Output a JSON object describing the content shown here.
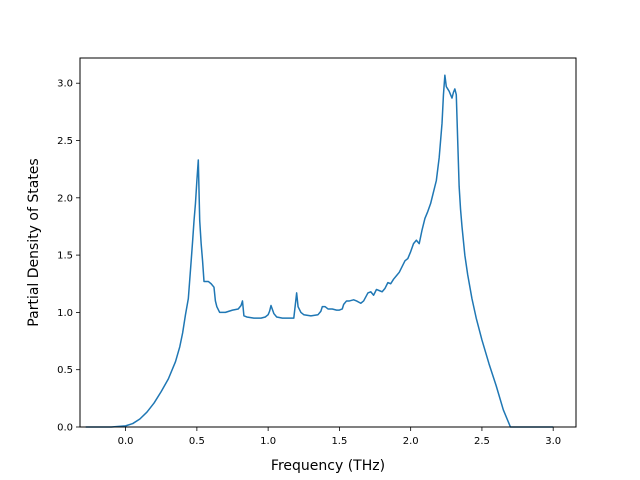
{
  "chart_data": {
    "type": "line",
    "title": "",
    "xlabel": "Frequency (THz)",
    "ylabel": "Partial Density of States",
    "xlim": [
      -0.32,
      3.16
    ],
    "ylim": [
      0,
      3.22
    ],
    "x_ticks": [
      {
        "value": 0.0,
        "label": "0.0"
      },
      {
        "value": 0.5,
        "label": "0.5"
      },
      {
        "value": 1.0,
        "label": "1.0"
      },
      {
        "value": 1.5,
        "label": "1.5"
      },
      {
        "value": 2.0,
        "label": "2.0"
      },
      {
        "value": 2.5,
        "label": "2.5"
      },
      {
        "value": 3.0,
        "label": "3.0"
      }
    ],
    "y_ticks": [
      {
        "value": 0.0,
        "label": "0.0"
      },
      {
        "value": 0.5,
        "label": "0.5"
      },
      {
        "value": 1.0,
        "label": "1.0"
      },
      {
        "value": 1.5,
        "label": "1.5"
      },
      {
        "value": 2.0,
        "label": "2.0"
      },
      {
        "value": 2.5,
        "label": "2.5"
      },
      {
        "value": 3.0,
        "label": "3.0"
      }
    ],
    "grid": false,
    "legend": "none",
    "series": [
      {
        "color": "#1f77b4",
        "x": [
          -0.28,
          -0.1,
          0.0,
          0.05,
          0.1,
          0.15,
          0.2,
          0.25,
          0.3,
          0.35,
          0.38,
          0.4,
          0.42,
          0.44,
          0.46,
          0.47,
          0.48,
          0.49,
          0.5,
          0.51,
          0.52,
          0.53,
          0.54,
          0.55,
          0.58,
          0.6,
          0.62,
          0.63,
          0.64,
          0.66,
          0.7,
          0.75,
          0.79,
          0.81,
          0.82,
          0.83,
          0.85,
          0.9,
          0.95,
          0.98,
          1.0,
          1.01,
          1.02,
          1.04,
          1.06,
          1.1,
          1.15,
          1.18,
          1.19,
          1.2,
          1.21,
          1.23,
          1.25,
          1.3,
          1.35,
          1.37,
          1.38,
          1.4,
          1.42,
          1.45,
          1.48,
          1.5,
          1.52,
          1.53,
          1.55,
          1.57,
          1.6,
          1.62,
          1.65,
          1.67,
          1.7,
          1.72,
          1.74,
          1.76,
          1.78,
          1.8,
          1.82,
          1.84,
          1.86,
          1.88,
          1.9,
          1.92,
          1.94,
          1.96,
          1.98,
          2.0,
          2.02,
          2.04,
          2.06,
          2.08,
          2.1,
          2.12,
          2.14,
          2.16,
          2.18,
          2.2,
          2.22,
          2.23,
          2.24,
          2.25,
          2.26,
          2.27,
          2.28,
          2.29,
          2.3,
          2.31,
          2.32,
          2.33,
          2.34,
          2.35,
          2.36,
          2.38,
          2.4,
          2.43,
          2.46,
          2.5,
          2.55,
          2.6,
          2.65,
          2.7,
          2.72,
          2.73,
          2.735,
          2.8,
          3.0
        ],
        "y": [
          0,
          0,
          0.01,
          0.03,
          0.07,
          0.13,
          0.21,
          0.31,
          0.42,
          0.57,
          0.7,
          0.82,
          0.98,
          1.12,
          1.45,
          1.62,
          1.8,
          1.95,
          2.15,
          2.33,
          1.8,
          1.6,
          1.45,
          1.27,
          1.27,
          1.25,
          1.22,
          1.1,
          1.05,
          1.0,
          1.0,
          1.02,
          1.03,
          1.06,
          1.1,
          0.97,
          0.96,
          0.95,
          0.95,
          0.96,
          0.98,
          1.01,
          1.06,
          0.99,
          0.96,
          0.95,
          0.95,
          0.95,
          1.06,
          1.17,
          1.05,
          1.0,
          0.98,
          0.97,
          0.98,
          1.01,
          1.05,
          1.05,
          1.03,
          1.03,
          1.02,
          1.02,
          1.03,
          1.07,
          1.1,
          1.1,
          1.11,
          1.1,
          1.08,
          1.1,
          1.17,
          1.18,
          1.15,
          1.2,
          1.19,
          1.18,
          1.21,
          1.26,
          1.25,
          1.29,
          1.32,
          1.35,
          1.4,
          1.45,
          1.47,
          1.53,
          1.6,
          1.63,
          1.6,
          1.72,
          1.82,
          1.88,
          1.95,
          2.05,
          2.15,
          2.35,
          2.65,
          2.9,
          3.07,
          2.97,
          2.95,
          2.93,
          2.9,
          2.87,
          2.92,
          2.95,
          2.9,
          2.5,
          2.1,
          1.9,
          1.75,
          1.5,
          1.33,
          1.12,
          0.95,
          0.76,
          0.55,
          0.36,
          0.15,
          0,
          0,
          0,
          0,
          0,
          0
        ]
      }
    ]
  }
}
